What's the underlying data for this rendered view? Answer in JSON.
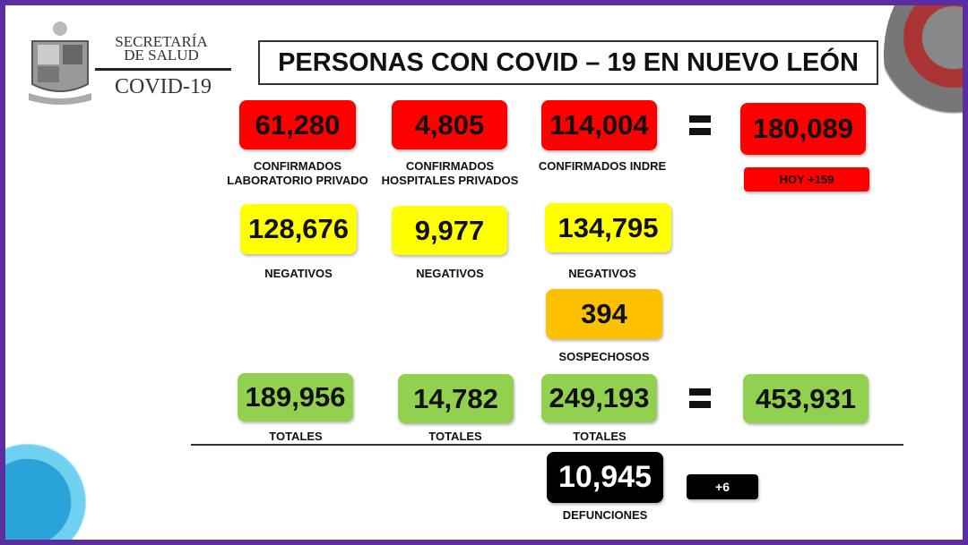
{
  "header": {
    "org_line1": "SECRETARÍA",
    "org_line2": "DE SALUD",
    "org_line3": "COVID-19",
    "title": "PERSONAS CON COVID – 19 EN NUEVO LEÓN"
  },
  "confirmed": {
    "lab_privado": "61,280",
    "hosp_privados": "4,805",
    "indre": "114,004",
    "total": "180,089",
    "today": "HOY +159",
    "labels": [
      "CONFIRMADOS",
      "LABORATORIO PRIVADO",
      "CONFIRMADOS",
      "HOSPITALES PRIVADOS",
      "CONFIRMADOS INDRE"
    ]
  },
  "negatives": {
    "values": [
      "128,676",
      "9,977",
      "134,795"
    ],
    "label": "NEGATIVOS"
  },
  "suspects": {
    "value": "394",
    "label": "SOSPECHOSOS"
  },
  "totals": {
    "values": [
      "189,956",
      "14,782",
      "249,193"
    ],
    "grand_total": "453,931",
    "label": "TOTALES"
  },
  "deaths": {
    "value": "10,945",
    "today": "+6",
    "label": "DEFUNCIONES"
  },
  "colors": {
    "confirmed": "#ff0000",
    "negatives": "#ffff00",
    "suspects": "#ffc000",
    "totals": "#92d050",
    "deaths": "#000000",
    "frame": "#5a2ea0"
  }
}
